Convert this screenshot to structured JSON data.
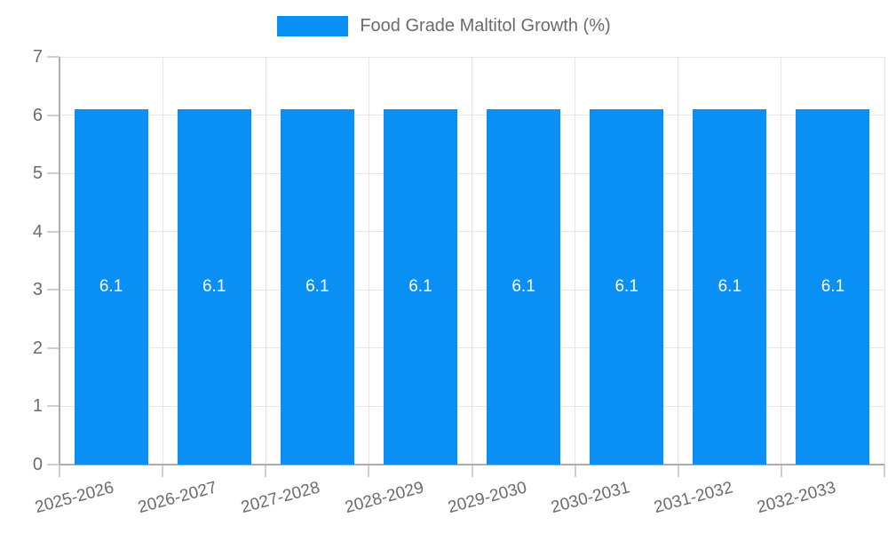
{
  "colors": {
    "bar": "#0a8ff5",
    "bar_label": "#ffffff",
    "grid": "#e6e6e6",
    "tick": "#cfcfcf",
    "axis": "#adadad",
    "text": "#6b6b6b",
    "background": "#ffffff"
  },
  "chart_data": {
    "type": "bar",
    "title": "Food Grade Maltitol Growth (%)",
    "categories": [
      "2025-2026",
      "2026-2027",
      "2027-2028",
      "2028-2029",
      "2029-2030",
      "2030-2031",
      "2031-2032",
      "2032-2033"
    ],
    "series": [
      {
        "name": "Food Grade Maltitol Growth (%)",
        "values": [
          6.1,
          6.1,
          6.1,
          6.1,
          6.1,
          6.1,
          6.1,
          6.1
        ]
      }
    ],
    "bar_value_labels": [
      "6.1",
      "6.1",
      "6.1",
      "6.1",
      "6.1",
      "6.1",
      "6.1",
      "6.1"
    ],
    "xlabel": "",
    "ylabel": "",
    "ylim": [
      0,
      7
    ],
    "yticks": [
      0,
      1,
      2,
      3,
      4,
      5,
      6,
      7
    ],
    "grid": true,
    "legend_position": "top"
  }
}
